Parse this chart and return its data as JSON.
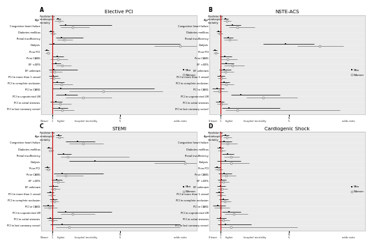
{
  "panels": [
    {
      "label": "A",
      "title": "Elective PCI",
      "rows": [
        {
          "name": "Age",
          "men_or": 1.35,
          "men_lo": 1.2,
          "men_hi": 1.5,
          "wom_or": 1.4,
          "wom_lo": 1.15,
          "wom_hi": 1.65
        },
        {
          "name": "Congestive heart failure",
          "men_or": 1.8,
          "men_lo": 1.4,
          "men_hi": 4.5,
          "wom_or": 2.2,
          "wom_lo": 1.5,
          "wom_hi": 3.2
        },
        {
          "name": "Diabetes mellitus",
          "men_or": 0.92,
          "men_lo": 0.8,
          "men_hi": 1.1,
          "wom_or": 1.05,
          "wom_lo": 0.9,
          "wom_hi": 1.22
        },
        {
          "name": "Renal insufficiency",
          "men_or": 1.55,
          "men_lo": 1.2,
          "men_hi": 2.8,
          "wom_or": 1.7,
          "wom_lo": 1.3,
          "wom_hi": 2.2
        },
        {
          "name": "Dialysis",
          "men_or": 1.1,
          "men_lo": 0.8,
          "men_hi": 8.5,
          "wom_or": 8.5,
          "wom_lo": 7.0,
          "wom_hi": 9.5
        },
        {
          "name": "Prior PCI",
          "men_or": 0.7,
          "men_lo": 0.55,
          "men_hi": 0.8,
          "wom_or": 0.75,
          "wom_lo": 0.6,
          "wom_hi": 0.85
        },
        {
          "name": "Prior CABG",
          "men_or": 1.3,
          "men_lo": 1.0,
          "men_hi": 1.65,
          "wom_or": 1.35,
          "wom_lo": 0.9,
          "wom_hi": 1.9
        },
        {
          "name": "EF <40%",
          "men_or": 1.2,
          "men_lo": 0.95,
          "men_hi": 1.5,
          "wom_or": 1.6,
          "wom_lo": 1.2,
          "wom_hi": 2.1
        },
        {
          "name": "EF unknown",
          "men_or": 1.1,
          "men_lo": 0.8,
          "men_hi": 2.5,
          "wom_or": 1.15,
          "wom_lo": 0.85,
          "wom_hi": 1.6
        },
        {
          "name": "PCI in more than 1 vessel",
          "men_or": 1.05,
          "men_lo": 0.8,
          "men_hi": 1.35,
          "wom_or": 1.1,
          "wom_lo": 0.85,
          "wom_hi": 1.45
        },
        {
          "name": "PCI in complete occlusion",
          "men_or": 1.3,
          "men_lo": 1.0,
          "men_hi": 1.7,
          "wom_or": 1.55,
          "wom_lo": 1.1,
          "wom_hi": 2.2
        },
        {
          "name": "PCI in CABG",
          "men_or": 1.5,
          "men_lo": 1.0,
          "men_hi": 7.0,
          "wom_or": 4.0,
          "wom_lo": 2.0,
          "wom_hi": 7.5
        },
        {
          "name": "PCI in unprotected LM",
          "men_or": 1.8,
          "men_lo": 1.2,
          "men_hi": 2.5,
          "wom_or": 2.8,
          "wom_lo": 1.8,
          "wom_hi": 4.5
        },
        {
          "name": "PCI in ostial stenosis",
          "men_or": 1.2,
          "men_lo": 0.9,
          "men_hi": 1.6,
          "wom_or": 1.45,
          "wom_lo": 1.0,
          "wom_hi": 2.1
        },
        {
          "name": "PCI in last coronary vessel",
          "men_or": 1.4,
          "men_lo": 1.0,
          "men_hi": 1.9,
          "wom_or": 1.6,
          "wom_lo": 1.1,
          "wom_hi": 2.3
        }
      ]
    },
    {
      "label": "B",
      "title": "NSTE-ACS",
      "rows": [
        {
          "name": "Age",
          "men_or": 1.3,
          "men_lo": 1.18,
          "men_hi": 1.45,
          "wom_or": 1.38,
          "wom_lo": 1.18,
          "wom_hi": 1.6
        },
        {
          "name": "Congestive heart failure",
          "men_or": 1.7,
          "men_lo": 1.3,
          "men_hi": 2.2,
          "wom_or": 2.0,
          "wom_lo": 1.5,
          "wom_hi": 3.0
        },
        {
          "name": "Diabetes mellitus",
          "men_or": 0.88,
          "men_lo": 0.75,
          "men_hi": 1.05,
          "wom_or": 0.95,
          "wom_lo": 0.8,
          "wom_hi": 1.12
        },
        {
          "name": "Renal insufficiency",
          "men_or": 1.45,
          "men_lo": 1.15,
          "men_hi": 1.75,
          "wom_or": 1.55,
          "wom_lo": 1.2,
          "wom_hi": 2.0
        },
        {
          "name": "Dialysis",
          "men_or": 4.8,
          "men_lo": 3.5,
          "men_hi": 6.5,
          "wom_or": 6.8,
          "wom_lo": 5.5,
          "wom_hi": 8.2
        },
        {
          "name": "Prior PCI",
          "men_or": 0.68,
          "men_lo": 0.55,
          "men_hi": 0.8,
          "wom_or": 0.73,
          "wom_lo": 0.58,
          "wom_hi": 0.88
        },
        {
          "name": "Prior CABG",
          "men_or": 1.25,
          "men_lo": 0.95,
          "men_hi": 1.65,
          "wom_or": 1.4,
          "wom_lo": 1.0,
          "wom_hi": 2.0
        },
        {
          "name": "EF <40%",
          "men_or": 1.35,
          "men_lo": 1.05,
          "men_hi": 1.8,
          "wom_or": 1.7,
          "wom_lo": 1.2,
          "wom_hi": 2.4
        },
        {
          "name": "EF unknown",
          "men_or": 1.2,
          "men_lo": 0.9,
          "men_hi": 1.6,
          "wom_or": 1.3,
          "wom_lo": 0.95,
          "wom_hi": 1.8
        },
        {
          "name": "PCI in more than 1 vessel",
          "men_or": 1.0,
          "men_lo": 0.8,
          "men_hi": 1.25,
          "wom_or": 1.05,
          "wom_lo": 0.82,
          "wom_hi": 1.35
        },
        {
          "name": "PCI in complete occlusion",
          "men_or": 1.2,
          "men_lo": 0.95,
          "men_hi": 1.55,
          "wom_or": 1.35,
          "wom_lo": 1.0,
          "wom_hi": 1.8
        },
        {
          "name": "PCI in CABG",
          "men_or": 0.8,
          "men_lo": 0.5,
          "men_hi": 1.2,
          "wom_or": 0.9,
          "wom_lo": 0.55,
          "wom_hi": 1.4
        },
        {
          "name": "PCI in unprotected LM",
          "men_or": 2.2,
          "men_lo": 1.6,
          "men_hi": 4.5,
          "wom_or": 3.5,
          "wom_lo": 2.5,
          "wom_hi": 5.5
        },
        {
          "name": "PCI in ostial stenosis",
          "men_or": 0.95,
          "men_lo": 0.72,
          "men_hi": 1.2,
          "wom_or": 1.05,
          "wom_lo": 0.8,
          "wom_hi": 1.4
        },
        {
          "name": "PCI in last coronary vessel",
          "men_or": 1.5,
          "men_lo": 1.1,
          "men_hi": 4.5,
          "wom_or": 2.0,
          "wom_lo": 1.3,
          "wom_hi": 8.0
        }
      ]
    },
    {
      "label": "C",
      "title": "STEMI",
      "rows": [
        {
          "name": "Age",
          "men_or": 1.38,
          "men_lo": 1.22,
          "men_hi": 1.55,
          "wom_or": 1.42,
          "wom_lo": 1.2,
          "wom_hi": 1.65
        },
        {
          "name": "Congestive heart failure",
          "men_or": 2.5,
          "men_lo": 1.8,
          "men_hi": 3.5,
          "wom_or": 2.8,
          "wom_lo": 2.0,
          "wom_hi": 4.0
        },
        {
          "name": "Diabetes mellitus",
          "men_or": 0.82,
          "men_lo": 0.68,
          "men_hi": 0.98,
          "wom_or": 0.9,
          "wom_lo": 0.75,
          "wom_hi": 1.08
        },
        {
          "name": "Renal insufficiency",
          "men_or": 1.65,
          "men_lo": 1.3,
          "men_hi": 2.1,
          "wom_or": 1.9,
          "wom_lo": 1.5,
          "wom_hi": 5.5
        },
        {
          "name": "Dialysis",
          "men_or": 3.5,
          "men_lo": 2.0,
          "men_hi": 8.8,
          "wom_or": 8.8,
          "wom_lo": 7.0,
          "wom_hi": 9.5
        },
        {
          "name": "Prior PCI",
          "men_or": 0.72,
          "men_lo": 0.55,
          "men_hi": 0.85,
          "wom_or": 0.75,
          "wom_lo": 0.58,
          "wom_hi": 0.88
        },
        {
          "name": "Prior CABG",
          "men_or": 1.6,
          "men_lo": 1.1,
          "men_hi": 4.0,
          "wom_or": 1.8,
          "wom_lo": 1.2,
          "wom_hi": 2.8
        },
        {
          "name": "EF <40%",
          "men_or": 1.25,
          "men_lo": 0.98,
          "men_hi": 1.58,
          "wom_or": 1.35,
          "wom_lo": 1.05,
          "wom_hi": 1.7
        },
        {
          "name": "EF unknown",
          "men_or": 1.05,
          "men_lo": 0.8,
          "men_hi": 1.35,
          "wom_or": 1.15,
          "wom_lo": 0.88,
          "wom_hi": 1.48
        },
        {
          "name": "PCI in more than 1 vessel",
          "men_or": 0.88,
          "men_lo": 0.7,
          "men_hi": 1.1,
          "wom_or": 0.95,
          "wom_lo": 0.75,
          "wom_hi": 1.18
        },
        {
          "name": "PCI in complete occlusion",
          "men_or": 1.05,
          "men_lo": 0.85,
          "men_hi": 1.28,
          "wom_or": 1.12,
          "wom_lo": 0.9,
          "wom_hi": 1.38
        },
        {
          "name": "PCI in CABG",
          "men_or": 0.75,
          "men_lo": 0.45,
          "men_hi": 1.1,
          "wom_or": 0.85,
          "wom_lo": 0.5,
          "wom_hi": 1.3
        },
        {
          "name": "PCI in unprotected LM",
          "men_or": 1.8,
          "men_lo": 1.3,
          "men_hi": 4.5,
          "wom_or": 2.2,
          "wom_lo": 1.5,
          "wom_hi": 3.5
        },
        {
          "name": "PCI in ostial stenosis",
          "men_or": 0.9,
          "men_lo": 0.7,
          "men_hi": 1.55,
          "wom_or": 1.0,
          "wom_lo": 0.78,
          "wom_hi": 1.3
        },
        {
          "name": "PCI in last coronary vessel",
          "men_or": 1.6,
          "men_lo": 0.9,
          "men_hi": 8.5,
          "wom_or": 2.0,
          "wom_lo": 1.2,
          "wom_hi": 8.5
        }
      ]
    },
    {
      "label": "D",
      "title": "Cardiogenic Shock",
      "rows": [
        {
          "name": "Age",
          "men_or": 1.28,
          "men_lo": 1.1,
          "men_hi": 1.5,
          "wom_or": 1.38,
          "wom_lo": 1.15,
          "wom_hi": 1.65
        },
        {
          "name": "Congestive heart failure",
          "men_or": 1.2,
          "men_lo": 0.88,
          "men_hi": 1.65,
          "wom_or": 1.4,
          "wom_lo": 1.0,
          "wom_hi": 2.0
        },
        {
          "name": "Diabetes mellitus",
          "men_or": 0.95,
          "men_lo": 0.78,
          "men_hi": 1.15,
          "wom_or": 1.05,
          "wom_lo": 0.85,
          "wom_hi": 1.28
        },
        {
          "name": "Renal insufficiency",
          "men_or": 1.4,
          "men_lo": 1.1,
          "men_hi": 1.8,
          "wom_or": 1.6,
          "wom_lo": 1.2,
          "wom_hi": 2.1
        },
        {
          "name": "Dialysis",
          "men_or": 1.3,
          "men_lo": 0.8,
          "men_hi": 2.2,
          "wom_or": 1.6,
          "wom_lo": 0.95,
          "wom_hi": 2.7
        },
        {
          "name": "Prior PCI",
          "men_or": 0.8,
          "men_lo": 0.62,
          "men_hi": 1.02,
          "wom_or": 0.88,
          "wom_lo": 0.68,
          "wom_hi": 1.12
        },
        {
          "name": "Prior CABG",
          "men_or": 1.2,
          "men_lo": 0.88,
          "men_hi": 1.65,
          "wom_or": 1.35,
          "wom_lo": 0.95,
          "wom_hi": 1.9
        },
        {
          "name": "EF <40%",
          "men_or": 1.05,
          "men_lo": 0.82,
          "men_hi": 1.35,
          "wom_or": 1.15,
          "wom_lo": 0.88,
          "wom_hi": 1.5
        },
        {
          "name": "EF unknown",
          "men_or": 1.0,
          "men_lo": 0.78,
          "men_hi": 1.28,
          "wom_or": 1.1,
          "wom_lo": 0.85,
          "wom_hi": 1.42
        },
        {
          "name": "PCI in more than 1 vessel",
          "men_or": 0.92,
          "men_lo": 0.72,
          "men_hi": 1.18,
          "wom_or": 1.0,
          "wom_lo": 0.78,
          "wom_hi": 1.28
        },
        {
          "name": "PCI in complete occlusion",
          "men_or": 1.15,
          "men_lo": 0.9,
          "men_hi": 1.45,
          "wom_or": 1.25,
          "wom_lo": 0.98,
          "wom_hi": 1.6
        },
        {
          "name": "PCI in CABG",
          "men_or": 0.85,
          "men_lo": 0.55,
          "men_hi": 1.3,
          "wom_or": 1.0,
          "wom_lo": 0.65,
          "wom_hi": 1.55
        },
        {
          "name": "PCI in unprotected LM",
          "men_or": 1.5,
          "men_lo": 1.1,
          "men_hi": 2.2,
          "wom_or": 1.8,
          "wom_lo": 1.25,
          "wom_hi": 2.6
        },
        {
          "name": "PCI in ostial stenosis",
          "men_or": 1.0,
          "men_lo": 0.75,
          "men_hi": 1.35,
          "wom_or": 1.15,
          "wom_lo": 0.85,
          "wom_hi": 1.55
        },
        {
          "name": "PCI in last coronary vessel",
          "men_or": 1.3,
          "men_lo": 0.85,
          "men_hi": 2.8,
          "wom_or": 1.6,
          "wom_lo": 1.0,
          "wom_hi": 5.5
        }
      ]
    }
  ],
  "men_color": "#222222",
  "women_color": "#888888",
  "ref_line_color": "#cc0000",
  "bg_color": "#ebebeb",
  "xmax": 9.5,
  "xmin": 0.35,
  "x_label_0": "0",
  "x_label_lower": "lower",
  "x_label_1": "1",
  "x_label_higher": "higher",
  "x_label_hosp": "hospital mortality",
  "x_label_5": "5",
  "x_label_odds": "odds ratio"
}
